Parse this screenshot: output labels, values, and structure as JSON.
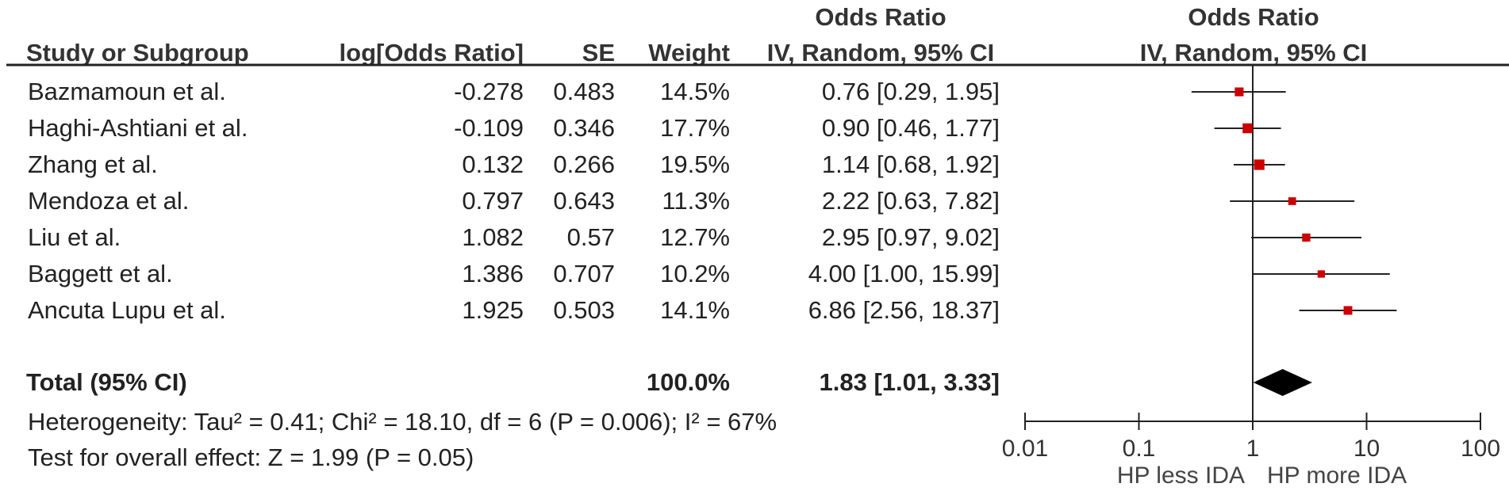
{
  "headers": {
    "study": "Study or Subgroup",
    "logor": "log[Odds Ratio]",
    "se": "SE",
    "weight": "Weight",
    "or_top": "Odds Ratio",
    "or_sub": "IV, Random, 95% CI",
    "plot_top": "Odds Ratio",
    "plot_sub": "IV, Random, 95% CI"
  },
  "rows": [
    {
      "study": "Bazmamoun et al.",
      "logor": "-0.278",
      "se": "0.483",
      "weight": "14.5%",
      "ci_text": "0.76 [0.29, 1.95]"
    },
    {
      "study": "Haghi-Ashtiani et al.",
      "logor": "-0.109",
      "se": "0.346",
      "weight": "17.7%",
      "ci_text": "0.90 [0.46, 1.77]"
    },
    {
      "study": "Zhang et al.",
      "logor": "0.132",
      "se": "0.266",
      "weight": "19.5%",
      "ci_text": "1.14 [0.68, 1.92]"
    },
    {
      "study": "Mendoza et al.",
      "logor": "0.797",
      "se": "0.643",
      "weight": "11.3%",
      "ci_text": "2.22 [0.63, 7.82]"
    },
    {
      "study": "Liu et al.",
      "logor": "1.082",
      "se": "0.57",
      "weight": "12.7%",
      "ci_text": "2.95 [0.97, 9.02]"
    },
    {
      "study": "Baggett et al.",
      "logor": "1.386",
      "se": "0.707",
      "weight": "10.2%",
      "ci_text": "4.00 [1.00, 15.99]"
    },
    {
      "study": "Ancuta Lupu et al.",
      "logor": "1.925",
      "se": "0.503",
      "weight": "14.1%",
      "ci_text": "6.86 [2.56, 18.37]"
    }
  ],
  "total": {
    "label": "Total (95% CI)",
    "weight": "100.0%",
    "ci_text": "1.83 [1.01, 3.33]"
  },
  "heterogeneity": "Heterogeneity: Tau² = 0.41; Chi² = 18.10, df = 6 (P = 0.006); I² = 67%",
  "overall_effect": "Test for overall effect: Z = 1.99 (P = 0.05)",
  "axis": {
    "left_label": "HP less IDA",
    "right_label": "HP more IDA"
  },
  "colors": {
    "marker": "#cc0000",
    "diamond": "#000000",
    "line": "#222222"
  },
  "chart_data": {
    "type": "forest",
    "scale": "log",
    "xlim": [
      0.01,
      100
    ],
    "ticks": [
      0.01,
      0.1,
      1,
      10,
      100
    ],
    "tick_labels": [
      "0.01",
      "0.1",
      "1",
      "10",
      "100"
    ],
    "null_value": 1,
    "studies": [
      {
        "name": "Bazmamoun et al.",
        "or": 0.76,
        "lo": 0.29,
        "hi": 1.95,
        "weight": 14.5
      },
      {
        "name": "Haghi-Ashtiani et al.",
        "or": 0.9,
        "lo": 0.46,
        "hi": 1.77,
        "weight": 17.7
      },
      {
        "name": "Zhang et al.",
        "or": 1.14,
        "lo": 0.68,
        "hi": 1.92,
        "weight": 19.5
      },
      {
        "name": "Mendoza et al.",
        "or": 2.22,
        "lo": 0.63,
        "hi": 7.82,
        "weight": 11.3
      },
      {
        "name": "Liu et al.",
        "or": 2.95,
        "lo": 0.97,
        "hi": 9.02,
        "weight": 12.7
      },
      {
        "name": "Baggett et al.",
        "or": 4.0,
        "lo": 1.0,
        "hi": 15.99,
        "weight": 10.2
      },
      {
        "name": "Ancuta Lupu et al.",
        "or": 6.86,
        "lo": 2.56,
        "hi": 18.37,
        "weight": 14.1
      }
    ],
    "pooled": {
      "or": 1.83,
      "lo": 1.01,
      "hi": 3.33
    }
  }
}
